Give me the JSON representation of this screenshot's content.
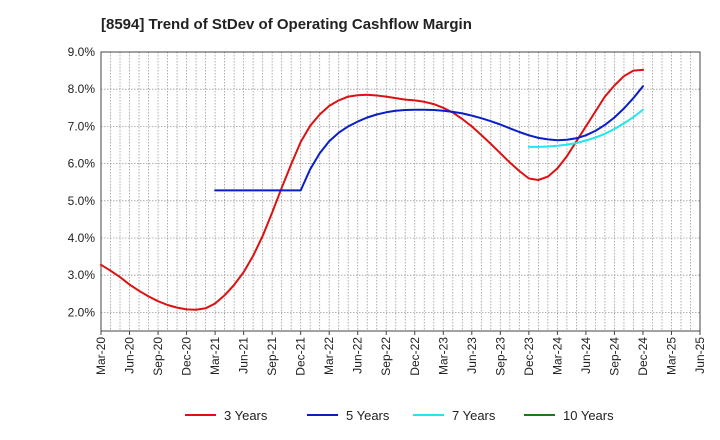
{
  "chart_data": {
    "type": "line",
    "title": "[8594]  Trend of StDev of Operating Cashflow Margin",
    "xlabel": "",
    "ylabel": "",
    "y_tick_labels": [
      "2.0%",
      "3.0%",
      "4.0%",
      "5.0%",
      "6.0%",
      "7.0%",
      "8.0%",
      "9.0%"
    ],
    "x_tick_labels": [
      "Mar-20",
      "Jun-20",
      "Sep-20",
      "Dec-20",
      "Mar-21",
      "Jun-21",
      "Sep-21",
      "Dec-21",
      "Mar-22",
      "Jun-22",
      "Sep-22",
      "Dec-22",
      "Mar-23",
      "Jun-23",
      "Sep-23",
      "Dec-23",
      "Mar-24",
      "Jun-24",
      "Sep-24",
      "Dec-24",
      "Mar-25",
      "Jun-25"
    ],
    "ylim": [
      1.5,
      9.0
    ],
    "grid": true,
    "legend_position": "bottom",
    "series": [
      {
        "name": "3 Years",
        "color": "#dd1111",
        "x": [
          "Mar-20",
          "Apr-20",
          "May-20",
          "Jun-20",
          "Jul-20",
          "Aug-20",
          "Sep-20",
          "Oct-20",
          "Nov-20",
          "Dec-20",
          "Jan-21",
          "Feb-21",
          "Mar-21",
          "Apr-21",
          "May-21",
          "Jun-21",
          "Jul-21",
          "Aug-21",
          "Sep-21",
          "Oct-21",
          "Nov-21",
          "Dec-21",
          "Jan-22",
          "Feb-22",
          "Mar-22",
          "Apr-22",
          "May-22",
          "Jun-22",
          "Jul-22",
          "Aug-22",
          "Sep-22",
          "Oct-22",
          "Nov-22",
          "Dec-22",
          "Jan-23",
          "Feb-23",
          "Mar-23",
          "Apr-23",
          "May-23",
          "Jun-23",
          "Jul-23",
          "Aug-23",
          "Sep-23",
          "Oct-23",
          "Nov-23",
          "Dec-23",
          "Jan-24",
          "Feb-24",
          "Mar-24",
          "Apr-24",
          "May-24",
          "Jun-24",
          "Jul-24",
          "Aug-24",
          "Sep-24",
          "Oct-24",
          "Nov-24",
          "Dec-24"
        ],
        "values": [
          3.28,
          3.12,
          2.95,
          2.75,
          2.58,
          2.43,
          2.3,
          2.2,
          2.13,
          2.08,
          2.07,
          2.11,
          2.24,
          2.46,
          2.74,
          3.08,
          3.52,
          4.05,
          4.68,
          5.35,
          5.98,
          6.58,
          7.02,
          7.32,
          7.55,
          7.7,
          7.8,
          7.84,
          7.85,
          7.83,
          7.8,
          7.76,
          7.72,
          7.7,
          7.66,
          7.6,
          7.5,
          7.37,
          7.2,
          7.0,
          6.77,
          6.53,
          6.28,
          6.03,
          5.8,
          5.6,
          5.56,
          5.65,
          5.87,
          6.2,
          6.6,
          7.0,
          7.4,
          7.8,
          8.1,
          8.35,
          8.5,
          8.52
        ]
      },
      {
        "name": "5 Years",
        "color": "#0a1ec8",
        "x": [
          "Mar-21 ",
          "Dec-21",
          "Jan-22",
          "Feb-22",
          "Mar-22",
          "Apr-22",
          "May-22",
          "Jun-22",
          "Jul-22",
          "Aug-22",
          "Sep-22",
          "Oct-22",
          "Nov-22",
          "Dec-22",
          "Jan-23",
          "Feb-23",
          "Mar-23",
          "Apr-23",
          "May-23",
          "Jun-23",
          "Jul-23",
          "Aug-23",
          "Sep-23",
          "Oct-23",
          "Nov-23",
          "Dec-23",
          "Jan-24",
          "Feb-24",
          "Mar-24",
          "Apr-24",
          "May-24",
          "Jun-24",
          "Jul-24",
          "Aug-24",
          "Sep-24",
          "Oct-24",
          "Nov-24",
          "Dec-24"
        ],
        "values": [
          5.28,
          5.28,
          5.85,
          6.28,
          6.6,
          6.83,
          7.0,
          7.13,
          7.24,
          7.32,
          7.38,
          7.42,
          7.44,
          7.45,
          7.45,
          7.44,
          7.42,
          7.39,
          7.35,
          7.29,
          7.22,
          7.14,
          7.05,
          6.95,
          6.85,
          6.76,
          6.69,
          6.65,
          6.63,
          6.64,
          6.68,
          6.76,
          6.88,
          7.04,
          7.24,
          7.48,
          7.76,
          8.08
        ]
      },
      {
        "name": "7 Years",
        "color": "#22e6ee",
        "x": [
          "Dec-23",
          "Jan-24",
          "Feb-24",
          "Mar-24",
          "Apr-24",
          "May-24",
          "Jun-24",
          "Jul-24",
          "Aug-24",
          "Sep-24",
          "Oct-24",
          "Nov-24",
          "Dec-24"
        ],
        "values": [
          6.45,
          6.45,
          6.46,
          6.48,
          6.51,
          6.55,
          6.62,
          6.7,
          6.8,
          6.93,
          7.08,
          7.25,
          7.45
        ]
      },
      {
        "name": "10 Years",
        "color": "#1a7a1a",
        "x": [],
        "values": []
      }
    ]
  }
}
